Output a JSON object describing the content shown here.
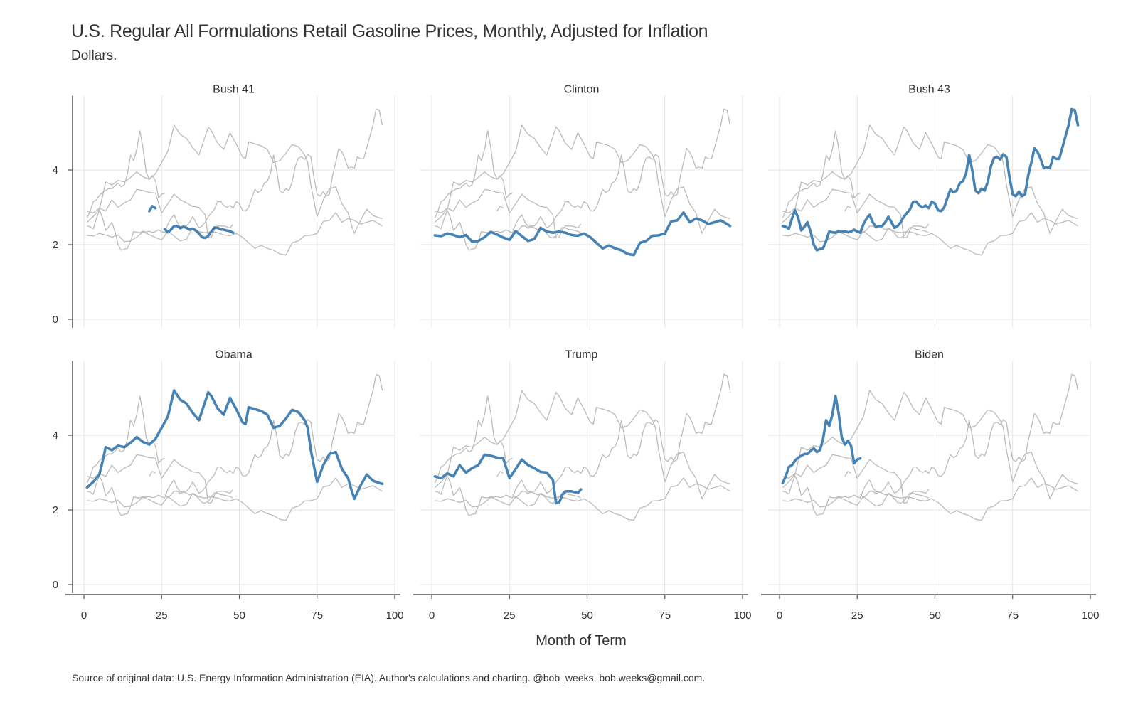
{
  "title": "U.S. Regular All Formulations Retail Gasoline Prices, Monthly,  Adjusted for Inflation",
  "subtitle": "Dollars.",
  "caption": "Source of original data: U.S. Energy Information Administration (EIA). Author's calculations and charting. @bob_weeks, bob.weeks@gmail.com.",
  "colors": {
    "highlight": "#4682b4",
    "background_series": "#bbbbbb",
    "grid": "#e3e3e3",
    "axis": "#555555"
  },
  "chart_data": {
    "type": "line",
    "layout": "facets 3 columns x 2 rows",
    "xlabel": "Month of Term",
    "ylabel": "",
    "xlim": [
      0,
      100
    ],
    "ylim": [
      0,
      5.8
    ],
    "x_ticks": [
      0,
      25,
      50,
      75,
      100
    ],
    "y_ticks": [
      0,
      2,
      4
    ],
    "grid": true,
    "panels": [
      "Bush 41",
      "Clinton",
      "Bush 43",
      "Obama",
      "Trump",
      "Biden"
    ],
    "series": [
      {
        "name": "Bush 41",
        "segments": [
          {
            "x": [
              21,
              22,
              23
            ],
            "y": [
              2.9,
              3.03,
              2.98
            ]
          },
          {
            "x": [
              26,
              27,
              28,
              29,
              30,
              31,
              32,
              33,
              34,
              35,
              36,
              37,
              38,
              39,
              40,
              41,
              42,
              43,
              44,
              45,
              46,
              47,
              48
            ],
            "y": [
              2.42,
              2.33,
              2.4,
              2.5,
              2.5,
              2.44,
              2.48,
              2.45,
              2.4,
              2.43,
              2.38,
              2.3,
              2.2,
              2.18,
              2.23,
              2.35,
              2.46,
              2.45,
              2.41,
              2.4,
              2.38,
              2.36,
              2.32
            ]
          }
        ]
      },
      {
        "name": "Clinton",
        "segments": [
          {
            "x": [
              1,
              3,
              5,
              7,
              9,
              11,
              13,
              15,
              17,
              19,
              21,
              23,
              25,
              27,
              29,
              31,
              33,
              35,
              37,
              39,
              41,
              43,
              45,
              47,
              49,
              51,
              53,
              55,
              57,
              59,
              61,
              63,
              65,
              67,
              69,
              71,
              73,
              75,
              77,
              79,
              81,
              83,
              85,
              87,
              89,
              91,
              93,
              95,
              96
            ],
            "y": [
              2.25,
              2.23,
              2.3,
              2.26,
              2.2,
              2.26,
              2.08,
              2.1,
              2.2,
              2.34,
              2.27,
              2.19,
              2.13,
              2.36,
              2.23,
              2.1,
              2.15,
              2.45,
              2.35,
              2.32,
              2.35,
              2.32,
              2.26,
              2.24,
              2.3,
              2.2,
              2.05,
              1.9,
              1.98,
              1.9,
              1.85,
              1.75,
              1.72,
              2.05,
              2.1,
              2.24,
              2.25,
              2.3,
              2.62,
              2.65,
              2.86,
              2.6,
              2.7,
              2.65,
              2.55,
              2.6,
              2.65,
              2.55,
              2.5
            ]
          }
        ]
      },
      {
        "name": "Bush 43",
        "segments": [
          {
            "x": [
              1,
              2,
              3,
              4,
              5,
              6,
              7,
              8,
              9,
              10,
              11,
              12,
              13,
              14,
              15,
              16,
              17,
              18,
              19,
              20,
              21,
              22,
              23,
              24,
              25,
              26,
              27,
              28,
              29,
              30,
              31,
              32,
              33,
              34,
              35,
              36,
              37,
              38,
              39,
              40,
              41,
              42,
              43,
              44,
              45,
              46,
              47,
              48,
              49,
              50,
              51,
              52,
              53,
              54,
              55,
              56,
              57,
              58,
              59,
              60,
              61,
              62,
              63,
              64,
              65,
              66,
              67,
              68,
              69,
              70,
              71,
              72,
              73,
              74,
              75,
              76,
              77,
              78,
              79,
              80,
              81,
              82,
              83,
              84,
              85,
              86,
              87,
              88,
              89,
              90,
              91,
              92,
              93,
              94,
              95,
              96
            ],
            "y": [
              2.5,
              2.48,
              2.42,
              2.7,
              2.92,
              2.72,
              2.38,
              2.48,
              2.6,
              2.35,
              2.0,
              1.85,
              1.88,
              1.9,
              2.1,
              2.35,
              2.33,
              2.32,
              2.36,
              2.34,
              2.36,
              2.33,
              2.35,
              2.4,
              2.35,
              2.32,
              2.55,
              2.7,
              2.8,
              2.6,
              2.48,
              2.5,
              2.5,
              2.6,
              2.75,
              2.6,
              2.45,
              2.5,
              2.6,
              2.75,
              2.85,
              2.95,
              3.15,
              3.15,
              3.05,
              3.0,
              3.05,
              2.98,
              3.15,
              3.1,
              2.92,
              2.9,
              3.0,
              3.25,
              3.48,
              3.4,
              3.45,
              3.65,
              3.7,
              3.9,
              4.4,
              4.0,
              3.45,
              3.38,
              3.5,
              3.45,
              3.68,
              4.1,
              4.32,
              4.35,
              4.28,
              4.42,
              4.35,
              3.8,
              3.35,
              3.3,
              3.42,
              3.3,
              3.35,
              3.85,
              4.2,
              4.58,
              4.48,
              4.3,
              4.05,
              4.08,
              4.05,
              4.35,
              4.3,
              4.3,
              4.6,
              4.9,
              5.2,
              5.63,
              5.6,
              5.2
            ]
          }
        ]
      },
      {
        "name": "Obama",
        "segments": [
          {
            "x": [
              1,
              3,
              5,
              6,
              7,
              9,
              11,
              13,
              15,
              17,
              19,
              21,
              23,
              25,
              27,
              28,
              29,
              31,
              33,
              35,
              37,
              39,
              40,
              41,
              43,
              45,
              47,
              49,
              51,
              52,
              53,
              55,
              57,
              59,
              61,
              63,
              65,
              67,
              69,
              71,
              72,
              73,
              75,
              77,
              79,
              81,
              83,
              85,
              86,
              87,
              89,
              91,
              93,
              95,
              96
            ],
            "y": [
              2.6,
              2.75,
              2.95,
              3.3,
              3.68,
              3.6,
              3.72,
              3.68,
              3.8,
              3.95,
              3.82,
              3.75,
              3.9,
              4.2,
              4.5,
              4.85,
              5.2,
              4.95,
              4.85,
              4.6,
              4.4,
              4.9,
              5.15,
              5.05,
              4.72,
              4.55,
              5.0,
              4.7,
              4.35,
              4.3,
              4.75,
              4.7,
              4.65,
              4.55,
              4.2,
              4.25,
              4.45,
              4.68,
              4.62,
              4.4,
              4.2,
              3.6,
              2.75,
              3.2,
              3.5,
              3.55,
              3.1,
              2.85,
              2.55,
              2.3,
              2.65,
              2.95,
              2.78,
              2.72,
              2.7
            ]
          }
        ]
      },
      {
        "name": "Trump",
        "segments": [
          {
            "x": [
              1,
              3,
              5,
              7,
              9,
              11,
              13,
              15,
              17,
              19,
              21,
              23,
              25,
              27,
              29,
              31,
              33,
              35,
              37,
              39,
              40,
              41,
              42,
              43,
              45,
              47,
              48
            ],
            "y": [
              2.9,
              2.85,
              2.98,
              2.9,
              3.2,
              3.0,
              3.12,
              3.2,
              3.48,
              3.45,
              3.4,
              3.38,
              2.85,
              3.1,
              3.35,
              3.2,
              3.12,
              3.02,
              3.0,
              2.8,
              2.18,
              2.2,
              2.4,
              2.5,
              2.5,
              2.45,
              2.55
            ]
          }
        ]
      },
      {
        "name": "Biden",
        "segments": [
          {
            "x": [
              1,
              2,
              3,
              4,
              5,
              6,
              7,
              8,
              9,
              10,
              11,
              12,
              13,
              14,
              15,
              16,
              17,
              18,
              19,
              20,
              21,
              22,
              23,
              24,
              25,
              26
            ],
            "y": [
              2.72,
              2.9,
              3.15,
              3.2,
              3.32,
              3.4,
              3.45,
              3.5,
              3.5,
              3.58,
              3.65,
              3.55,
              3.6,
              3.9,
              4.4,
              4.25,
              4.55,
              5.05,
              4.6,
              3.95,
              3.75,
              3.85,
              3.72,
              3.25,
              3.35,
              3.38
            ]
          }
        ]
      }
    ]
  }
}
